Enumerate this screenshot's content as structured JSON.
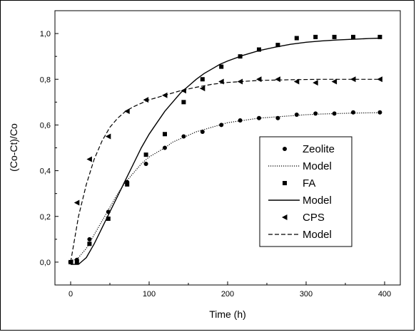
{
  "chart_data": {
    "type": "scatter",
    "xlabel": "Time (h)",
    "ylabel": "(Co-Ct)/Co",
    "xlim": [
      -20,
      420
    ],
    "ylim": [
      -0.1,
      1.1
    ],
    "x_ticks": [
      0,
      100,
      200,
      300,
      400
    ],
    "x_tick_labels": [
      "0",
      "100",
      "200",
      "300",
      "400"
    ],
    "y_ticks": [
      0.0,
      0.2,
      0.4,
      0.6,
      0.8,
      1.0
    ],
    "y_tick_labels": [
      "0,0",
      "0,2",
      "0,4",
      "0,6",
      "0,8",
      "1,0"
    ],
    "grid": false,
    "legend_position": "center-right",
    "series": [
      {
        "name": "Zeolite",
        "marker": "circle",
        "x": [
          0,
          8,
          24,
          48,
          72,
          96,
          120,
          144,
          168,
          192,
          216,
          240,
          264,
          288,
          312,
          336,
          360,
          394
        ],
        "y": [
          0.0,
          0.01,
          0.1,
          0.22,
          0.35,
          0.43,
          0.5,
          0.55,
          0.57,
          0.6,
          0.62,
          0.63,
          0.63,
          0.645,
          0.65,
          0.65,
          0.655,
          0.655
        ]
      },
      {
        "name": "Model",
        "line": "dotted",
        "x": [
          0,
          10,
          20,
          30,
          40,
          50,
          60,
          70,
          80,
          90,
          100,
          110,
          120,
          130,
          140,
          150,
          160,
          170,
          180,
          190,
          200,
          220,
          240,
          260,
          280,
          300,
          320,
          340,
          360,
          380,
          395
        ],
        "y": [
          0.0,
          0.02,
          0.06,
          0.12,
          0.18,
          0.24,
          0.3,
          0.35,
          0.39,
          0.43,
          0.46,
          0.48,
          0.5,
          0.525,
          0.54,
          0.555,
          0.57,
          0.58,
          0.59,
          0.6,
          0.61,
          0.62,
          0.63,
          0.635,
          0.64,
          0.645,
          0.648,
          0.65,
          0.652,
          0.653,
          0.654
        ]
      },
      {
        "name": "FA",
        "marker": "square",
        "x": [
          0,
          8,
          24,
          48,
          72,
          96,
          120,
          144,
          168,
          192,
          216,
          240,
          264,
          288,
          312,
          336,
          360,
          394
        ],
        "y": [
          0.0,
          0.0,
          0.08,
          0.19,
          0.34,
          0.47,
          0.56,
          0.7,
          0.8,
          0.855,
          0.9,
          0.93,
          0.95,
          0.98,
          0.985,
          0.985,
          0.985,
          0.985
        ]
      },
      {
        "name": "Model",
        "line": "solid",
        "x": [
          0,
          10,
          20,
          30,
          40,
          50,
          60,
          70,
          80,
          90,
          100,
          110,
          120,
          130,
          140,
          150,
          160,
          170,
          180,
          190,
          200,
          220,
          240,
          260,
          280,
          300,
          320,
          340,
          360,
          380,
          395
        ],
        "y": [
          -0.01,
          -0.01,
          0.02,
          0.08,
          0.15,
          0.22,
          0.29,
          0.36,
          0.43,
          0.5,
          0.56,
          0.61,
          0.66,
          0.7,
          0.74,
          0.77,
          0.8,
          0.825,
          0.845,
          0.865,
          0.88,
          0.905,
          0.925,
          0.94,
          0.953,
          0.962,
          0.968,
          0.972,
          0.975,
          0.978,
          0.98
        ]
      },
      {
        "name": "CPS",
        "marker": "triangle-left",
        "x": [
          0,
          8,
          24,
          48,
          72,
          96,
          120,
          144,
          168,
          192,
          216,
          240,
          264,
          288,
          312,
          336,
          360,
          394
        ],
        "y": [
          0.0,
          0.26,
          0.45,
          0.55,
          0.66,
          0.71,
          0.73,
          0.75,
          0.76,
          0.79,
          0.79,
          0.8,
          0.8,
          0.79,
          0.785,
          0.79,
          0.8,
          0.8
        ]
      },
      {
        "name": "Model",
        "line": "dashed",
        "x": [
          0,
          5,
          10,
          20,
          30,
          40,
          50,
          60,
          70,
          80,
          90,
          100,
          120,
          140,
          160,
          180,
          200,
          240,
          280,
          320,
          360,
          395
        ],
        "y": [
          0.0,
          0.1,
          0.2,
          0.34,
          0.45,
          0.53,
          0.59,
          0.63,
          0.66,
          0.68,
          0.695,
          0.71,
          0.73,
          0.75,
          0.765,
          0.778,
          0.786,
          0.795,
          0.798,
          0.8,
          0.8,
          0.8
        ]
      }
    ]
  }
}
